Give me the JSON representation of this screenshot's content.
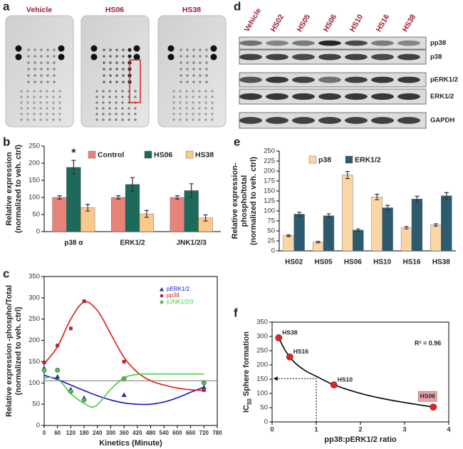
{
  "panel_labels": [
    "a",
    "b",
    "c",
    "d",
    "e",
    "f"
  ],
  "array_images": {
    "labels": [
      "Vehicle",
      "HS06",
      "HS38"
    ]
  },
  "western_blot": {
    "lanes": [
      "Vehicle",
      "HS02",
      "HS05",
      "HS06",
      "HS10",
      "HS16",
      "HS38"
    ],
    "rows": [
      "pp38",
      "p38",
      "pERK1/2",
      "ERK1/2",
      "GAPDH"
    ]
  },
  "chart_data": [
    {
      "type": "bar",
      "categories": [
        "p38 α",
        "ERK1/2",
        "JNK1/2/3"
      ],
      "series": [
        {
          "name": "Control",
          "color": "#e8837a",
          "values": [
            100,
            100,
            100
          ],
          "errors": [
            5,
            5,
            5
          ]
        },
        {
          "name": "HS06",
          "color": "#1d6a5a",
          "values": [
            188,
            138,
            120
          ],
          "errors": [
            20,
            20,
            20
          ]
        },
        {
          "name": "HS38",
          "color": "#fcc98c",
          "values": [
            70,
            52,
            40
          ],
          "errors": [
            10,
            10,
            9
          ]
        }
      ],
      "ylabel": [
        "Relative expression",
        "(normalized to veh. ctrl)"
      ],
      "ylim": [
        0,
        250
      ],
      "yticks": [
        0,
        50,
        100,
        150,
        200,
        250
      ],
      "legend": "top",
      "annotation": "*"
    },
    {
      "type": "scatter",
      "xlabel": "Kinetics (Minute)",
      "ylabel": [
        "Relative expression -phospho/Total",
        "(normalized to veh. ctrl)"
      ],
      "xlim": [
        0,
        780
      ],
      "xticks": [
        0,
        60,
        120,
        180,
        240,
        300,
        360,
        420,
        480,
        540,
        600,
        660,
        720,
        780
      ],
      "ylim": [
        0,
        350
      ],
      "yticks": [
        0,
        50,
        100,
        150,
        200,
        250,
        300,
        350
      ],
      "hline": 105,
      "legend": "upper right",
      "frame": true,
      "series": [
        {
          "name": "pERK1/2",
          "color": "#1f2f9a",
          "marker": "triangle",
          "x": [
            0,
            60,
            120,
            180,
            360,
            720
          ],
          "values": [
            135,
            115,
            85,
            65,
            72,
            90
          ],
          "fit": {
            "color": "#1515c8",
            "x": [
              0,
              60,
              120,
              180,
              240,
              300,
              360,
              420,
              480,
              540,
              600,
              660,
              720
            ],
            "values": [
              118,
              108,
              95,
              82,
              70,
              60,
              53,
              50,
              50,
              55,
              65,
              78,
              90
            ]
          }
        },
        {
          "name": "pp38",
          "color": "#b02a2a",
          "marker": "square",
          "x": [
            0,
            60,
            120,
            180,
            360,
            720
          ],
          "values": [
            148,
            188,
            228,
            292,
            150,
            83
          ],
          "fit": {
            "color": "#e01818",
            "x": [
              0,
              60,
              120,
              180,
              240,
              300,
              360,
              420,
              480,
              540,
              600,
              660,
              720
            ],
            "values": [
              145,
              185,
              250,
              290,
              270,
              215,
              160,
              125,
              105,
              95,
              88,
              84,
              82
            ]
          }
        },
        {
          "name": "pJNK1/2/3",
          "color": "#5cb85c",
          "marker": "circle",
          "x": [
            0,
            60,
            120,
            180,
            360,
            720
          ],
          "values": [
            130,
            130,
            80,
            60,
            110,
            100
          ],
          "fit": {
            "color": "#3ad33a",
            "x": [
              0,
              60,
              120,
              180,
              230,
              300,
              360,
              420,
              480,
              540,
              600,
              660,
              720
            ],
            "values": [
              112,
              110,
              75,
              52,
              45,
              85,
              112,
              120,
              121,
              121,
              121,
              121,
              121
            ]
          }
        }
      ]
    },
    {
      "type": "bar",
      "categories": [
        "HS02",
        "HS05",
        "HS06",
        "HS10",
        "HS16",
        "HS38"
      ],
      "series": [
        {
          "name": "p38",
          "color": "#fcd5a5",
          "values": [
            38,
            22,
            190,
            135,
            58,
            65
          ],
          "errors": [
            2,
            2,
            9,
            7,
            3,
            3
          ]
        },
        {
          "name": "ERK1/2",
          "color": "#2c5b6f",
          "values": [
            92,
            88,
            52,
            108,
            130,
            138
          ],
          "errors": [
            5,
            5,
            3,
            6,
            7,
            8
          ]
        }
      ],
      "ylabel": [
        "Relative expression-",
        "phospho/total",
        "(normalized to veh. ctrl)"
      ],
      "ylim": [
        0,
        250
      ],
      "yticks": [
        0,
        25,
        50,
        75,
        100,
        125,
        150,
        175,
        200,
        225,
        250
      ],
      "legend": "top"
    },
    {
      "type": "scatter",
      "xlabel": "pp38:pERK1/2 ratio",
      "ylabel": [
        [
          "IC",
          "50",
          " Sphere formation"
        ]
      ],
      "xlim": [
        0,
        4
      ],
      "xticks": [
        0,
        1,
        2,
        3,
        4
      ],
      "ylim": [
        0,
        350
      ],
      "yticks": [
        0,
        50,
        100,
        150,
        200,
        250,
        300,
        350
      ],
      "frame": true,
      "annotation": "R² = 0.96",
      "guide": {
        "x": 1,
        "y": 152
      },
      "series": [
        {
          "color": "#e52222",
          "marker": "circle",
          "x": [
            0.15,
            0.4,
            1.4,
            3.65
          ],
          "values": [
            295,
            228,
            130,
            52
          ],
          "labels": [
            "HS38",
            "HS16",
            "HS10",
            "HS06"
          ],
          "fit": {
            "color": "#000000",
            "x": [
              0.15,
              0.3,
              0.5,
              0.75,
              1,
              1.4,
              2,
              2.5,
              3,
              3.65
            ],
            "values": [
              295,
              250,
              210,
              180,
              160,
              130,
              100,
              82,
              68,
              52
            ]
          }
        }
      ]
    }
  ]
}
